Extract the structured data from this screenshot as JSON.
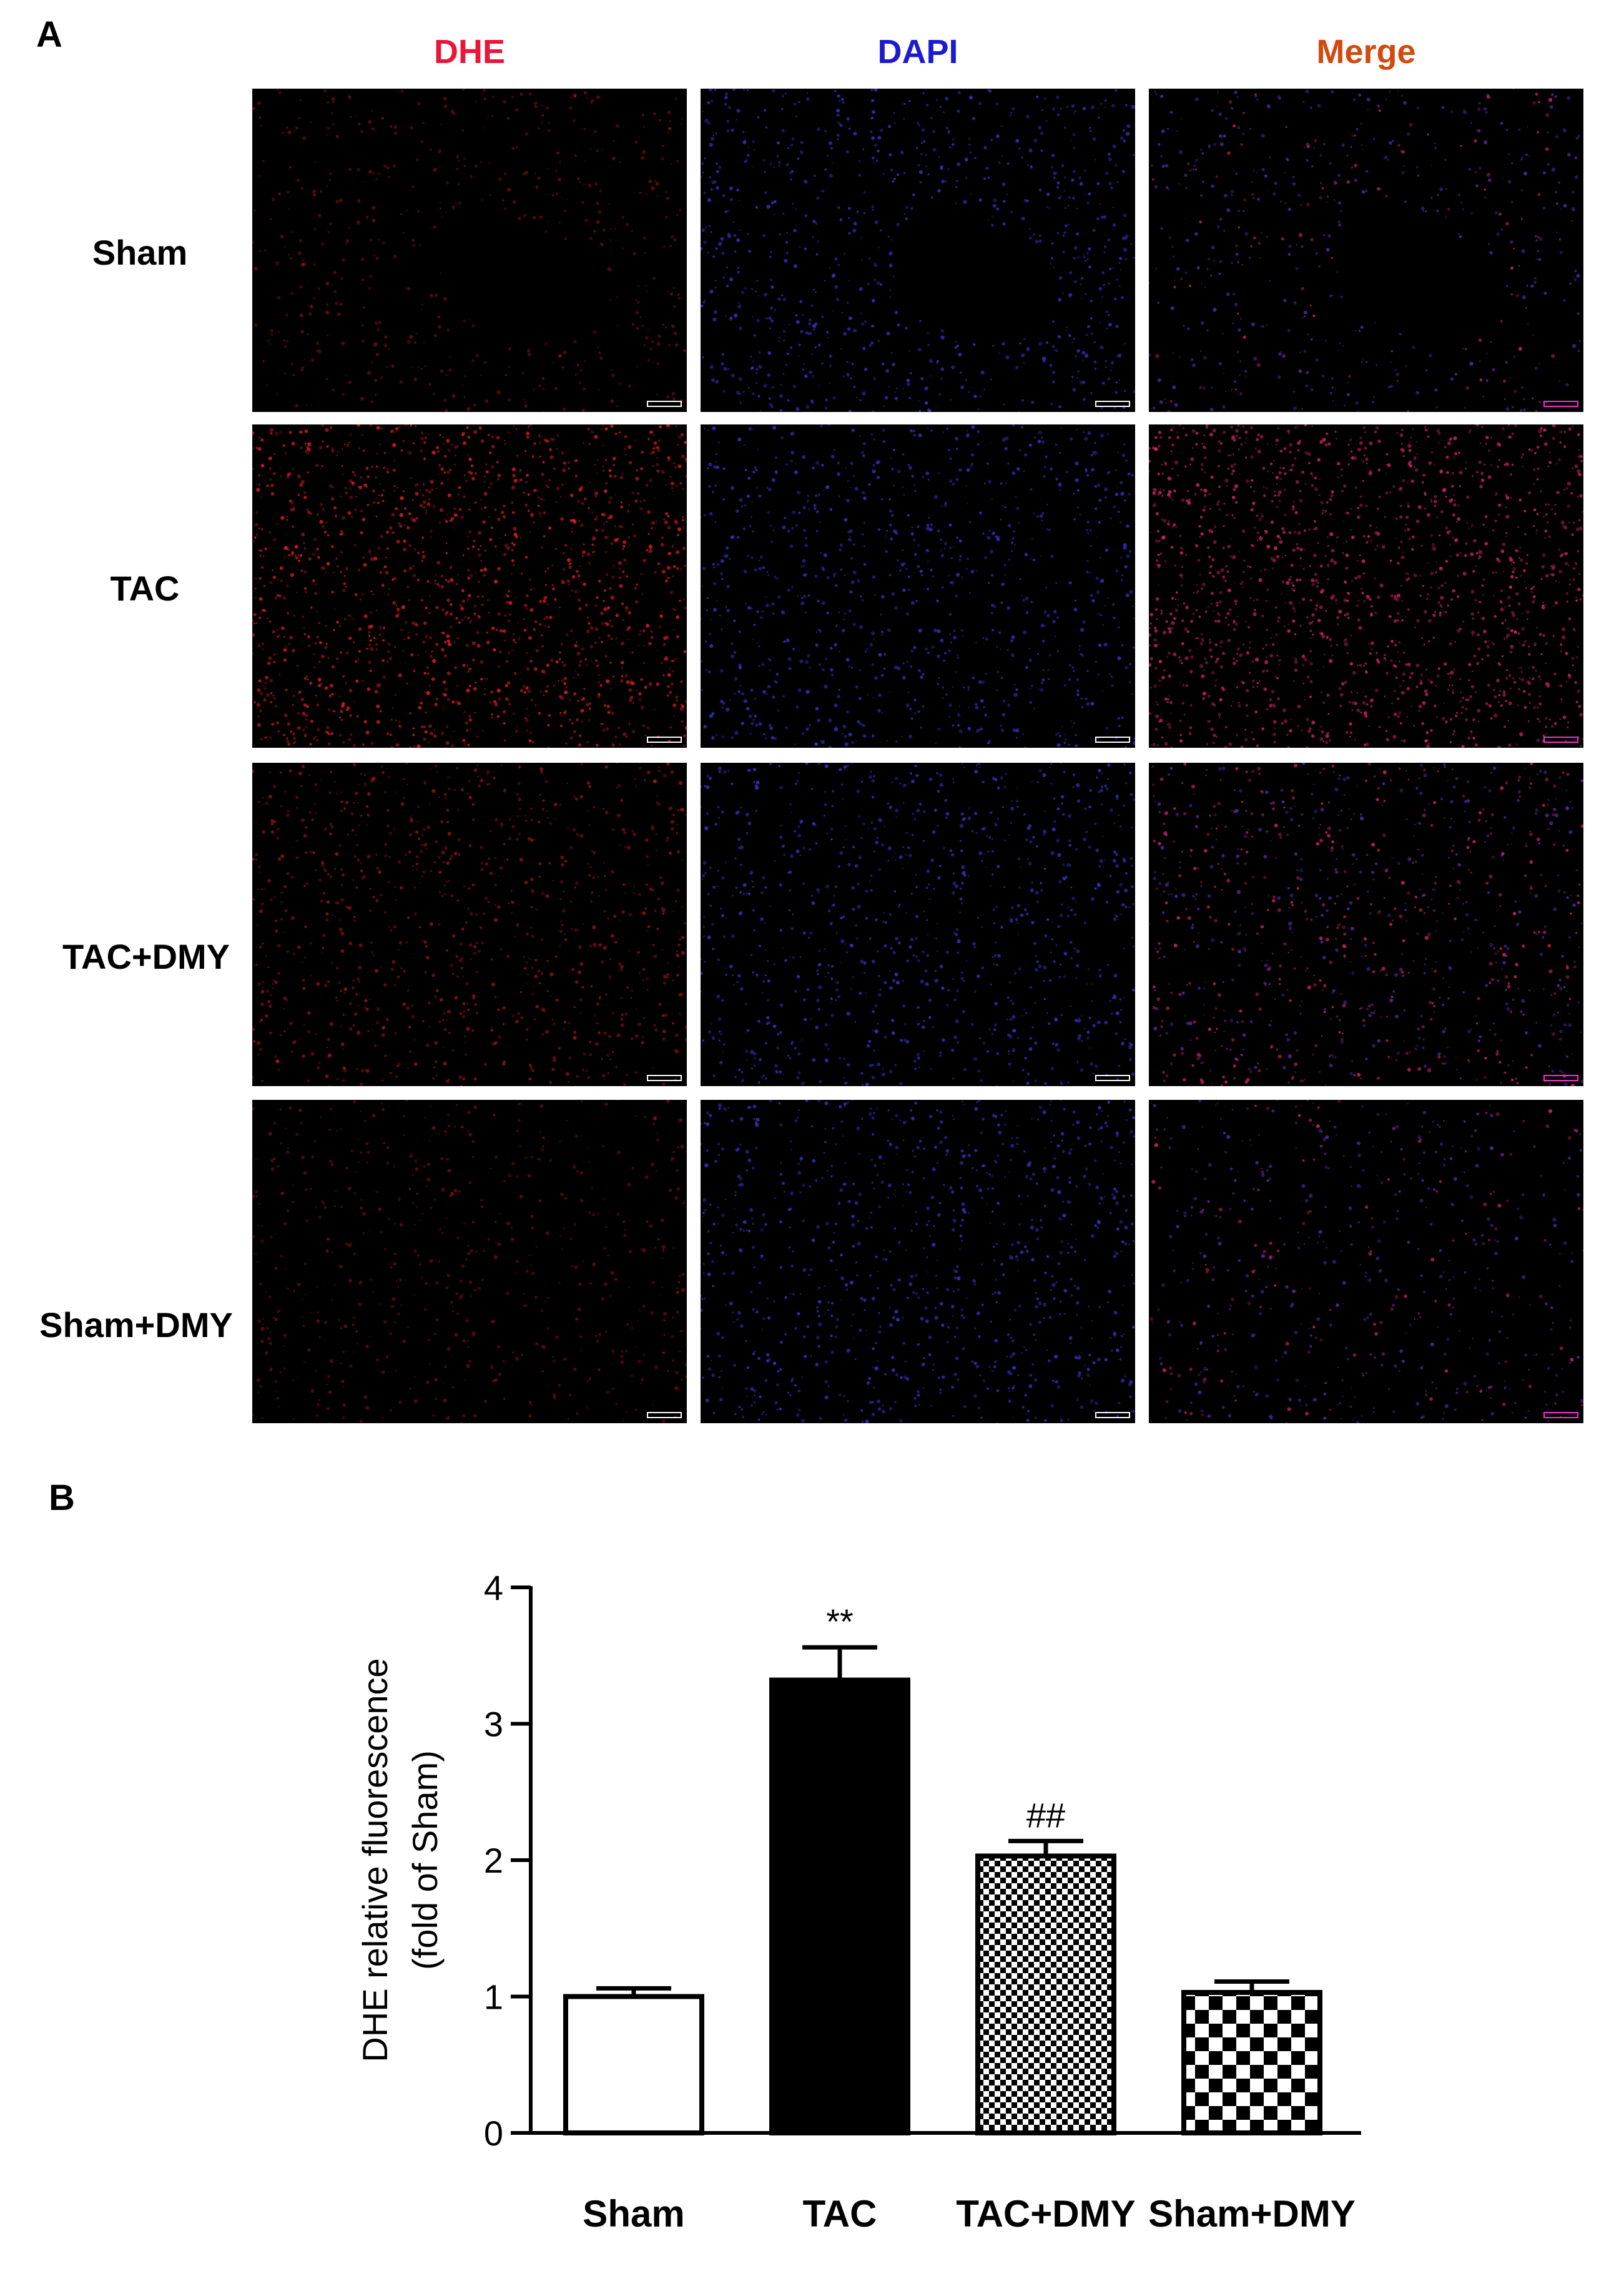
{
  "panel_a": {
    "label": "A",
    "columns": [
      {
        "label": "DHE",
        "color": "#e8173a"
      },
      {
        "label": "DAPI",
        "color": "#1c1ccf"
      },
      {
        "label": "Merge",
        "color": "#d24a0e"
      }
    ],
    "rows": [
      {
        "label": "Sham",
        "intensity": "low"
      },
      {
        "label": "TAC",
        "intensity": "high"
      },
      {
        "label": "TAC+DMY",
        "intensity": "medium"
      },
      {
        "label": "Sham+DMY",
        "intensity": "low"
      }
    ]
  },
  "panel_b": {
    "label": "B"
  },
  "chart_data": {
    "type": "bar",
    "categories": [
      "Sham",
      "TAC",
      "TAC+DMY",
      "Sham+DMY"
    ],
    "values": [
      1.0,
      3.32,
      2.03,
      1.03
    ],
    "errors": [
      0.06,
      0.24,
      0.11,
      0.08
    ],
    "annotations": [
      "",
      "**",
      "##",
      ""
    ],
    "fills": [
      "white",
      "black",
      "fine-checker",
      "coarse-checker"
    ],
    "ylabel_line1": "DHE relative fluorescence",
    "ylabel_line2": "(fold of Sham)",
    "ylim": [
      0,
      4
    ],
    "yticks": [
      "0",
      "1",
      "2",
      "3",
      "4"
    ],
    "grid": false
  }
}
